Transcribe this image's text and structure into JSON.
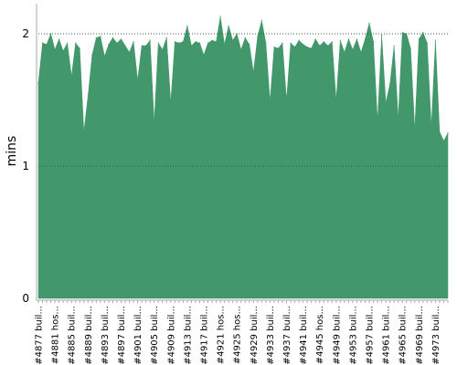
{
  "chart_data": {
    "type": "area",
    "ylabel": "mins",
    "xlabel": "",
    "title": "",
    "ylim": [
      0,
      2.2
    ],
    "yticks": [
      0,
      1,
      2
    ],
    "grid": true,
    "fill_color": "#43986b",
    "grid_color": "#555555",
    "axis_color": "#aaaaaa",
    "x_tick_labels": [
      "#4877 buil...",
      "#4881 hos...",
      "#4885 buil...",
      "#4889 buil...",
      "#4893 buil...",
      "#4897 buil...",
      "#4901 buil...",
      "#4905 buil...",
      "#4909 buil...",
      "#4913 buil...",
      "#4917 buil...",
      "#4921 hos...",
      "#4925 hos...",
      "#4929 buil...",
      "#4933 buil...",
      "#4937 buil...",
      "#4941 buil...",
      "#4945 hos...",
      "#4949 buil...",
      "#4953 buil...",
      "#4957 buil...",
      "#4961 buil...",
      "#4965 buil...",
      "#4969 buil...",
      "#4973 buil..."
    ],
    "series": [
      {
        "values": [
          1.63,
          1.93,
          1.92,
          2.0,
          1.88,
          1.96,
          1.87,
          1.93,
          1.68,
          1.93,
          1.89,
          1.26,
          1.53,
          1.84,
          1.97,
          1.98,
          1.83,
          1.92,
          1.97,
          1.93,
          1.96,
          1.91,
          1.86,
          1.94,
          1.65,
          1.91,
          1.91,
          1.95,
          1.33,
          1.93,
          1.88,
          1.97,
          1.48,
          1.94,
          1.93,
          1.94,
          2.06,
          1.91,
          1.94,
          1.93,
          1.84,
          1.93,
          1.95,
          1.94,
          2.13,
          1.92,
          2.06,
          1.95,
          2.0,
          1.88,
          1.97,
          1.92,
          1.71,
          1.98,
          2.1,
          1.93,
          1.49,
          1.9,
          1.89,
          1.93,
          1.5,
          1.93,
          1.9,
          1.95,
          1.92,
          1.9,
          1.89,
          1.96,
          1.91,
          1.94,
          1.91,
          1.94,
          1.5,
          1.95,
          1.86,
          1.96,
          1.88,
          1.96,
          1.86,
          1.96,
          2.08,
          1.94,
          1.34,
          1.99,
          1.48,
          1.62,
          1.91,
          1.36,
          2.01,
          2.0,
          1.89,
          1.28,
          1.96,
          2.01,
          1.93,
          1.3,
          1.95,
          1.26,
          1.19,
          1.25
        ]
      }
    ]
  }
}
